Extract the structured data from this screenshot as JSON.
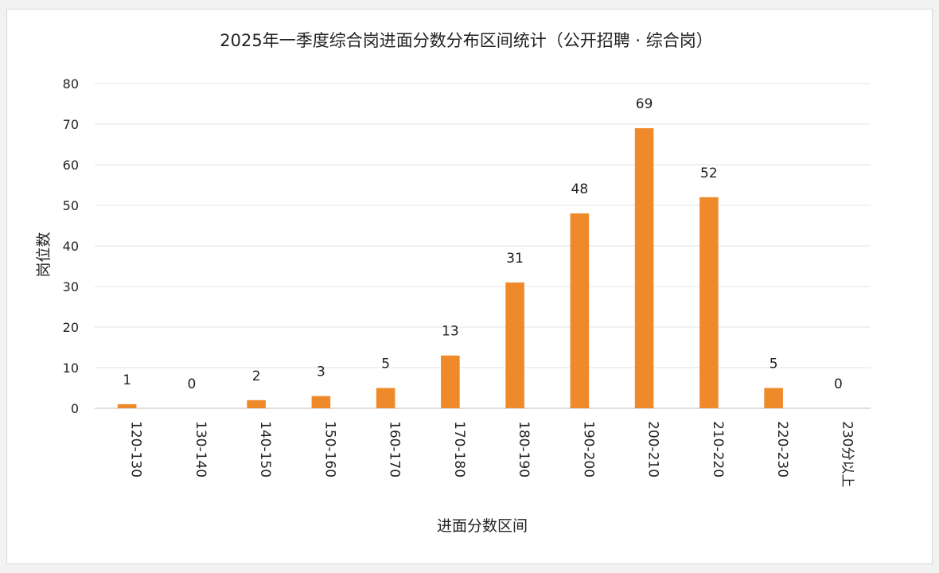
{
  "chart_data": {
    "type": "bar",
    "title": "2025年一季度综合岗进面分数分布区间统计（公开招聘 · 综合岗）",
    "xlabel": "进面分数区间",
    "ylabel": "岗位数",
    "categories": [
      "120-130",
      "130-140",
      "140-150",
      "150-160",
      "160-170",
      "170-180",
      "180-190",
      "190-200",
      "200-210",
      "210-220",
      "220-230",
      "230分以上"
    ],
    "values": [
      1,
      0,
      2,
      3,
      5,
      13,
      31,
      48,
      69,
      52,
      5,
      0
    ],
    "ylim": [
      0,
      80
    ],
    "yticks": [
      0,
      10,
      20,
      30,
      40,
      50,
      60,
      70,
      80
    ],
    "grid": true,
    "legend": "none",
    "bar_color": "#ef8a2b"
  }
}
